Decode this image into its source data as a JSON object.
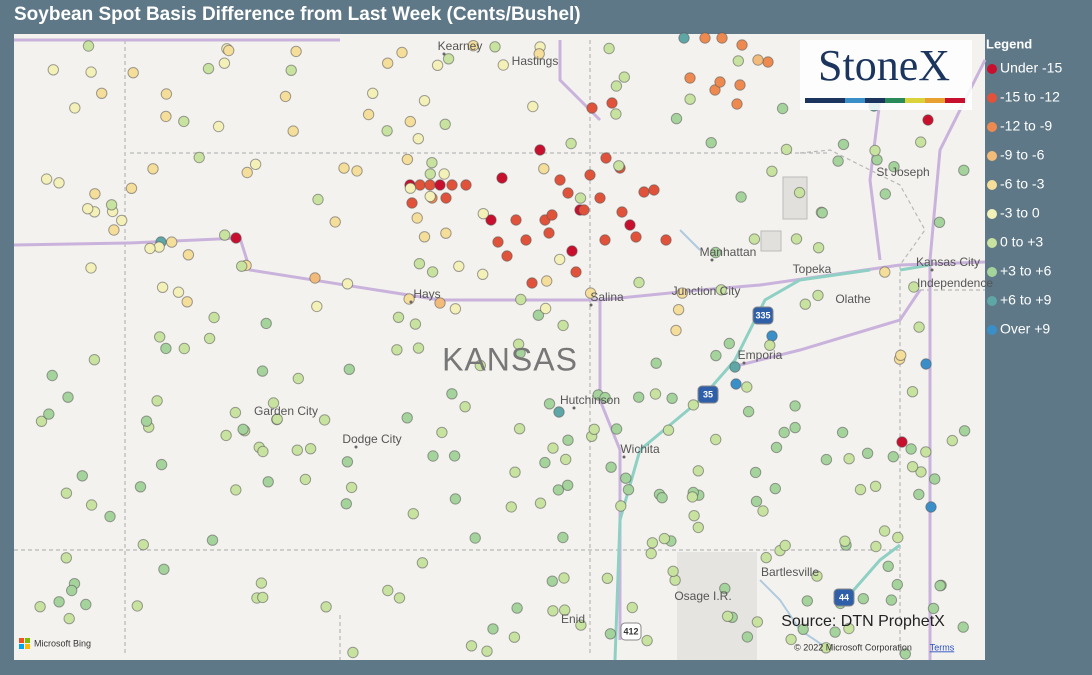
{
  "title": "Soybean Spot Basis Difference from Last Week (Cents/Bushel)",
  "legend": {
    "title": "Legend",
    "items": [
      {
        "label": "Under -15",
        "color": "#c8102e"
      },
      {
        "label": "-15 to -12",
        "color": "#e0533a"
      },
      {
        "label": "-12 to -9",
        "color": "#ee8a4f"
      },
      {
        "label": "-9 to -6",
        "color": "#f3bb7a"
      },
      {
        "label": "-6 to -3",
        "color": "#f5dd9a"
      },
      {
        "label": "-3 to 0",
        "color": "#f4f1b8"
      },
      {
        "label": "0 to +3",
        "color": "#c8e3a0"
      },
      {
        "label": "+3 to +6",
        "color": "#a5d39c"
      },
      {
        "label": "+6 to +9",
        "color": "#5fa6a6"
      },
      {
        "label": "Over +9",
        "color": "#3b8fc8"
      }
    ]
  },
  "map": {
    "state_label": "KANSAS",
    "places": [
      "Kearney",
      "Hastings",
      "St Joseph",
      "Manhattan",
      "Topeka",
      "Kansas City",
      "Independence",
      "Hays",
      "Junction City",
      "Salina",
      "Olathe",
      "Emporia",
      "Garden City",
      "Hutchinson",
      "Dodge City",
      "Wichita",
      "Bartlesville",
      "Osage I.R.",
      "Enid"
    ],
    "highways": [
      "335",
      "35",
      "44",
      "412"
    ]
  },
  "logo": "StoneX",
  "source": "Source: DTN ProphetX",
  "attribution": {
    "provider": "Microsoft Bing",
    "copyright": "© 2022 Microsoft Corporation",
    "terms": "Terms"
  }
}
